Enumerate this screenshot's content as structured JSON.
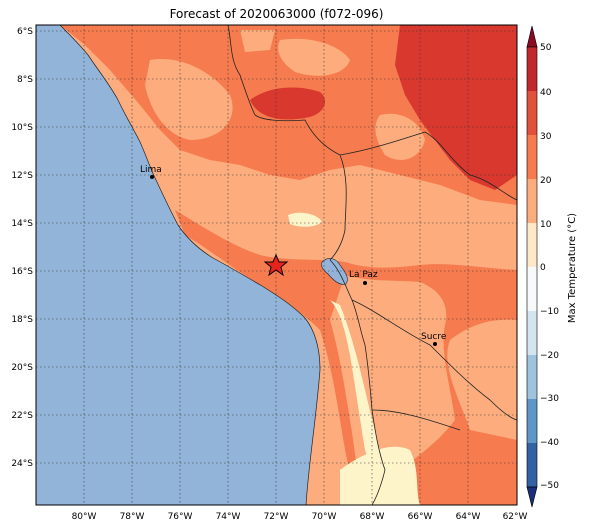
{
  "title": "Forecast of 2020063000 (f072-096)",
  "colorbar": {
    "label": "Max Temperature (°C)",
    "ticks": [
      "50",
      "40",
      "30",
      "20",
      "10",
      "0",
      "−10",
      "−20",
      "−30",
      "−40",
      "−50"
    ],
    "colors": [
      "#67001f",
      "#b2182b",
      "#d6604d",
      "#f4a582",
      "#fddbc7",
      "#ffffff",
      "#d1e5f0",
      "#92c5de",
      "#4393c3",
      "#2166ac",
      "#053061"
    ],
    "band_colors": [
      "#8b0a26",
      "#c2272d",
      "#e2513b",
      "#f67b4e",
      "#fcac7d",
      "#fee8c8",
      "#f7f9fb",
      "#d5e5f0",
      "#9dc3dd",
      "#5f96c5",
      "#3262a3",
      "#1b2e7c"
    ]
  },
  "lon_labels": [
    "80°W",
    "78°W",
    "76°W",
    "74°W",
    "72°W",
    "70°W",
    "68°W",
    "66°W",
    "64°W",
    "62°W"
  ],
  "lat_labels": [
    "6°S",
    "8°S",
    "10°S",
    "12°S",
    "14°S",
    "16°S",
    "18°S",
    "20°S",
    "22°S",
    "24°S"
  ],
  "cities": [
    {
      "name": "Lima",
      "label": "Lima"
    },
    {
      "name": "La Paz",
      "label": "La Paz"
    },
    {
      "name": "Sucre",
      "label": "Sucre"
    }
  ],
  "colors": {
    "ocean": "#92b4d8",
    "t20_30": "#fcac7d",
    "t30_40": "#f67b4e",
    "t40_50": "#d8382e",
    "t10_20": "#fdf5c9",
    "grid": "#333333",
    "star": "#e8231c"
  }
}
